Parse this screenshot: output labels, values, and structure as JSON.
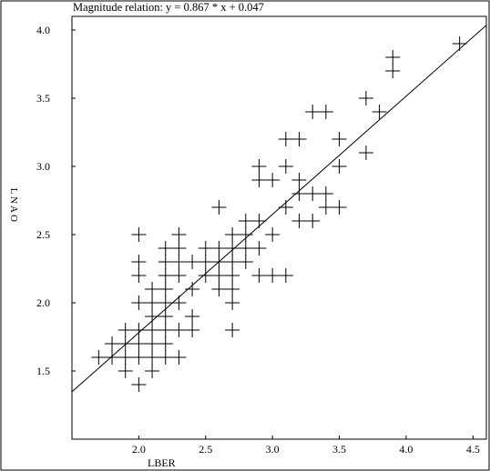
{
  "chart_data": {
    "type": "scatter",
    "title": "Magnitude relation: y =   0.867 * x +   0.047",
    "xlabel": "LBER",
    "ylabel": "LNAO",
    "xlim": [
      1.5,
      4.6
    ],
    "ylim": [
      1.0,
      4.1
    ],
    "xticks": [
      2.0,
      2.5,
      3.0,
      3.5,
      4.0,
      4.5
    ],
    "yticks": [
      1.5,
      2.0,
      2.5,
      3.0,
      3.5,
      4.0
    ],
    "xtick_labels": [
      "2.0",
      "2.5",
      "3.0",
      "3.5",
      "4.0",
      "4.5"
    ],
    "ytick_labels": [
      "1.5",
      "2.0",
      "2.5",
      "3.0",
      "3.5",
      "4.0"
    ],
    "grid": false,
    "marker": "plus",
    "fit_line": {
      "slope": 0.867,
      "intercept": 0.047
    },
    "points": [
      [
        1.7,
        1.6
      ],
      [
        1.8,
        1.6
      ],
      [
        1.8,
        1.7
      ],
      [
        1.9,
        1.7
      ],
      [
        1.9,
        1.8
      ],
      [
        1.9,
        1.5
      ],
      [
        1.9,
        1.6
      ],
      [
        2.0,
        1.6
      ],
      [
        2.0,
        1.7
      ],
      [
        2.0,
        1.8
      ],
      [
        2.0,
        1.4
      ],
      [
        2.0,
        2.0
      ],
      [
        2.0,
        2.2
      ],
      [
        2.0,
        2.3
      ],
      [
        2.0,
        2.5
      ],
      [
        2.1,
        1.5
      ],
      [
        2.1,
        1.6
      ],
      [
        2.1,
        1.7
      ],
      [
        2.1,
        1.8
      ],
      [
        2.1,
        1.9
      ],
      [
        2.1,
        2.0
      ],
      [
        2.1,
        2.1
      ],
      [
        2.2,
        1.6
      ],
      [
        2.2,
        1.7
      ],
      [
        2.2,
        1.8
      ],
      [
        2.2,
        1.9
      ],
      [
        2.2,
        2.0
      ],
      [
        2.2,
        2.1
      ],
      [
        2.2,
        2.2
      ],
      [
        2.2,
        2.3
      ],
      [
        2.2,
        2.4
      ],
      [
        2.3,
        1.6
      ],
      [
        2.3,
        1.8
      ],
      [
        2.3,
        2.0
      ],
      [
        2.3,
        2.2
      ],
      [
        2.3,
        2.3
      ],
      [
        2.3,
        2.4
      ],
      [
        2.3,
        2.5
      ],
      [
        2.4,
        1.8
      ],
      [
        2.4,
        1.9
      ],
      [
        2.4,
        2.1
      ],
      [
        2.4,
        2.3
      ],
      [
        2.5,
        2.2
      ],
      [
        2.5,
        2.3
      ],
      [
        2.5,
        2.4
      ],
      [
        2.6,
        2.1
      ],
      [
        2.6,
        2.2
      ],
      [
        2.6,
        2.3
      ],
      [
        2.6,
        2.4
      ],
      [
        2.6,
        2.7
      ],
      [
        2.7,
        1.8
      ],
      [
        2.7,
        2.0
      ],
      [
        2.7,
        2.1
      ],
      [
        2.7,
        2.2
      ],
      [
        2.7,
        2.3
      ],
      [
        2.7,
        2.4
      ],
      [
        2.7,
        2.5
      ],
      [
        2.8,
        2.3
      ],
      [
        2.8,
        2.4
      ],
      [
        2.8,
        2.5
      ],
      [
        2.8,
        2.6
      ],
      [
        2.9,
        2.2
      ],
      [
        2.9,
        2.4
      ],
      [
        2.9,
        2.6
      ],
      [
        2.9,
        2.9
      ],
      [
        2.9,
        3.0
      ],
      [
        3.0,
        2.2
      ],
      [
        3.0,
        2.5
      ],
      [
        3.0,
        2.9
      ],
      [
        3.1,
        2.2
      ],
      [
        3.1,
        2.7
      ],
      [
        3.1,
        3.0
      ],
      [
        3.1,
        3.2
      ],
      [
        3.2,
        2.6
      ],
      [
        3.2,
        2.8
      ],
      [
        3.2,
        2.9
      ],
      [
        3.2,
        3.2
      ],
      [
        3.3,
        2.6
      ],
      [
        3.3,
        2.8
      ],
      [
        3.3,
        3.4
      ],
      [
        3.4,
        2.7
      ],
      [
        3.4,
        2.8
      ],
      [
        3.4,
        3.4
      ],
      [
        3.5,
        2.7
      ],
      [
        3.5,
        3.0
      ],
      [
        3.5,
        3.2
      ],
      [
        3.7,
        3.1
      ],
      [
        3.7,
        3.5
      ],
      [
        3.8,
        3.4
      ],
      [
        3.9,
        3.7
      ],
      [
        3.9,
        3.8
      ],
      [
        4.4,
        3.9
      ]
    ]
  }
}
